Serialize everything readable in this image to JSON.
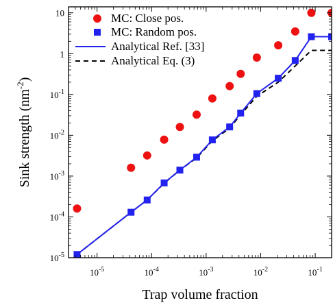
{
  "chart_data": {
    "type": "scatter",
    "xlabel": "Trap volume fraction",
    "ylabel_main": "Sink strength (nm",
    "ylabel_exp": "-2",
    "ylabel_close": ")",
    "xscale": "log",
    "yscale": "log",
    "xlim": [
      3e-06,
      0.2
    ],
    "ylim": [
      1e-05,
      14
    ],
    "grid": false,
    "legend_position": "top-left",
    "x_ticks": [
      {
        "value": 1e-05,
        "base": "10",
        "exp": "-5"
      },
      {
        "value": 0.0001,
        "base": "10",
        "exp": "-4"
      },
      {
        "value": 0.001,
        "base": "10",
        "exp": "-3"
      },
      {
        "value": 0.01,
        "base": "10",
        "exp": "-2"
      },
      {
        "value": 0.1,
        "base": "10",
        "exp": "-1"
      }
    ],
    "y_ticks": [
      {
        "value": 1e-05,
        "base": "10",
        "exp": "-5"
      },
      {
        "value": 0.0001,
        "base": "10",
        "exp": "-4"
      },
      {
        "value": 0.001,
        "base": "10",
        "exp": "-3"
      },
      {
        "value": 0.01,
        "base": "10",
        "exp": "-2"
      },
      {
        "value": 0.1,
        "base": "10",
        "exp": "-1"
      },
      {
        "value": 1,
        "base": "1",
        "exp": ""
      },
      {
        "value": 10,
        "base": "10",
        "exp": ""
      }
    ],
    "series": [
      {
        "name": "MC: Close pos.",
        "kind": "marker",
        "marker": "circle",
        "color": "#ee1111",
        "x": [
          4.3e-06,
          4.2e-05,
          8.3e-05,
          0.00017,
          0.00033,
          0.00067,
          0.0013,
          0.0027,
          0.0043,
          0.0085,
          0.021,
          0.043,
          0.085,
          0.2
        ],
        "y": [
          0.00016,
          0.0016,
          0.0032,
          0.0078,
          0.016,
          0.032,
          0.08,
          0.16,
          0.32,
          0.8,
          1.6,
          3.5,
          10,
          10
        ]
      },
      {
        "name": "MC: Random pos.",
        "kind": "marker",
        "marker": "square",
        "color": "#2222ee",
        "x": [
          4.3e-06,
          4.2e-05,
          8.3e-05,
          0.00017,
          0.00033,
          0.00067,
          0.0013,
          0.0027,
          0.0043,
          0.0085,
          0.021,
          0.043,
          0.085,
          0.2
        ],
        "y": [
          1.2e-05,
          0.00013,
          0.00026,
          0.00068,
          0.0014,
          0.0029,
          0.0077,
          0.016,
          0.035,
          0.105,
          0.25,
          0.68,
          2.6,
          2.6
        ]
      },
      {
        "name": "Analytical Ref. [33]",
        "kind": "line",
        "dash": "solid",
        "color": "#2222ee",
        "x": [
          4.3e-06,
          4.2e-05,
          8.3e-05,
          0.00017,
          0.00033,
          0.00067,
          0.0013,
          0.0027,
          0.0043,
          0.0085,
          0.021,
          0.043,
          0.085,
          0.2
        ],
        "y": [
          1.2e-05,
          0.00013,
          0.00026,
          0.00068,
          0.0014,
          0.0029,
          0.0077,
          0.016,
          0.035,
          0.105,
          0.25,
          0.68,
          2.6,
          2.6
        ]
      },
      {
        "name": "Analytical Eq. (3)",
        "kind": "line",
        "dash": "dashed",
        "color": "#000000",
        "x": [
          4.3e-06,
          4.2e-05,
          8.3e-05,
          0.00017,
          0.00033,
          0.00067,
          0.0013,
          0.0027,
          0.0043,
          0.0085,
          0.021,
          0.043,
          0.085,
          0.2
        ],
        "y": [
          1.2e-05,
          0.00013,
          0.00026,
          0.00067,
          0.0014,
          0.0028,
          0.0073,
          0.015,
          0.032,
          0.09,
          0.2,
          0.5,
          1.2,
          1.2
        ]
      }
    ]
  }
}
